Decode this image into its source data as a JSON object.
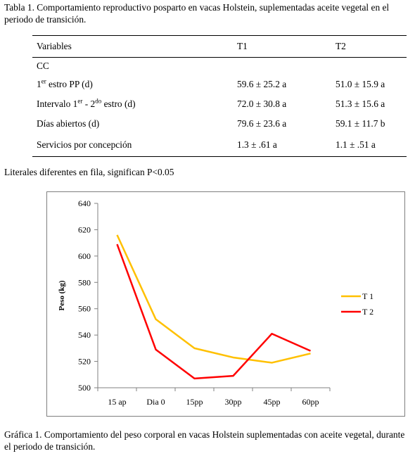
{
  "table": {
    "caption": "Tabla 1. Comportamiento reproductivo posparto en vacas Holstein, suplementadas  aceite vegetal en el periodo de transición.",
    "headers": [
      "Variables",
      "T1",
      "T2"
    ],
    "group_label": "CC",
    "rows": [
      {
        "label_pre": "1",
        "label_sup": "er",
        "label_post": " estro PP (d)",
        "t1": "59.6 ± 25.2 a",
        "t2": "51.0 ± 15.9 a"
      },
      {
        "label_pre": "Intervalo 1",
        "label_sup": "er",
        "label_mid": " -  2",
        "label_sup2": "do",
        "label_post": " estro (d)",
        "t1": "72.0 ± 30.8 a",
        "t2": "51.3 ± 15.6 a"
      },
      {
        "label_pre": "Días abiertos (d)",
        "t1": "79.6 ± 23.6 a",
        "t2": "59.1 ± 11.7 b"
      },
      {
        "label_pre": "Servicios por concepción",
        "t1": "1.3 ± .61 a",
        "t2": "1.1 ± .51 a"
      }
    ]
  },
  "note": "Literales diferentes en fila, significan P<0.05",
  "graph_caption": "Gráfica 1. Comportamiento del peso corporal en vacas Holstein suplementadas con aceite vegetal, durante el periodo de transición.",
  "colors": {
    "t1": "#ffc000",
    "t2": "#ff0000",
    "axis": "#808080"
  },
  "chart_data": {
    "type": "line",
    "title": "",
    "xlabel": "",
    "ylabel": "Peso (kg)",
    "categories": [
      "15 ap",
      "Dia 0",
      "15pp",
      "30pp",
      "45pp",
      "60pp"
    ],
    "ylim": [
      500,
      640
    ],
    "yticks": [
      500,
      520,
      540,
      560,
      580,
      600,
      620,
      640
    ],
    "grid": false,
    "legend": "right",
    "series": [
      {
        "name": "T 1",
        "values": [
          616,
          552,
          530,
          523,
          519,
          526
        ]
      },
      {
        "name": "T 2",
        "values": [
          609,
          529,
          507,
          509,
          541,
          528
        ]
      }
    ]
  }
}
